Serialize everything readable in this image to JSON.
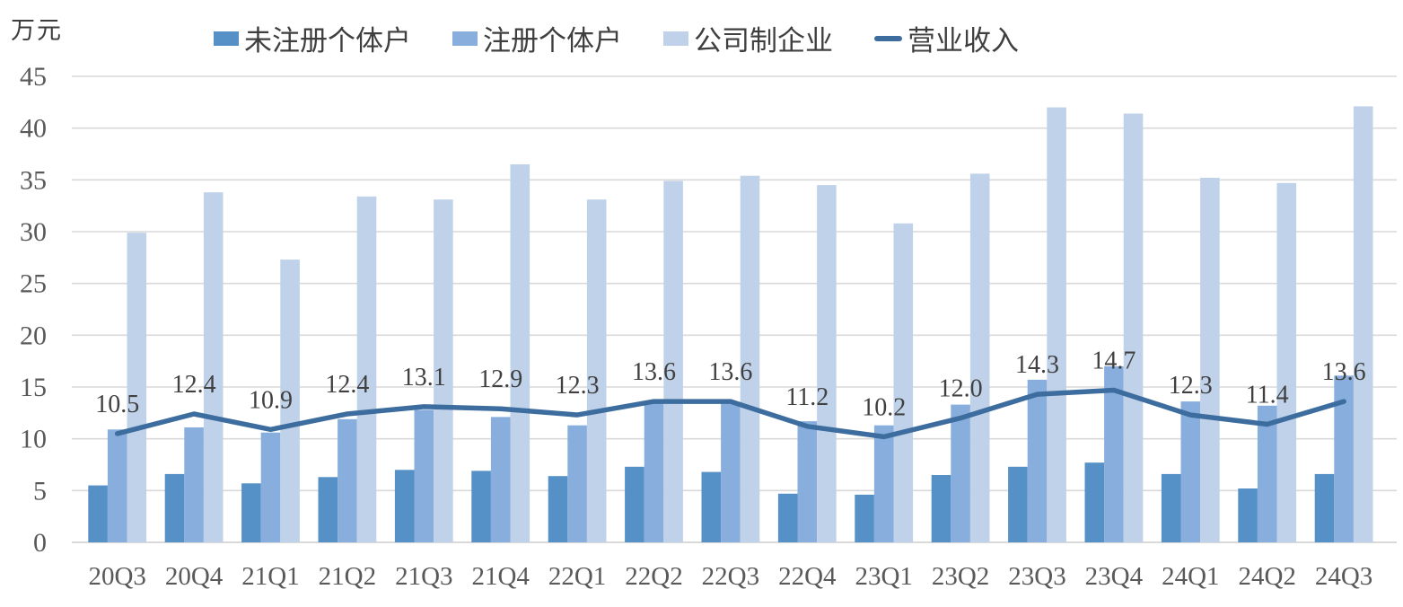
{
  "unit_label": "万元",
  "colors": {
    "bar_unregistered": "#5590C7",
    "bar_registered": "#87AEDD",
    "bar_corporate": "#C0D2EA",
    "revenue_line": "#3D6D9E",
    "gridline": "#D9D9D9",
    "axis_line": "#C6C6C6",
    "tick_text": "#595959",
    "data_label_text": "#404040"
  },
  "chart_data": {
    "type": "bar",
    "subtype": "grouped bars with line overlay",
    "title": "",
    "xlabel": "",
    "ylabel": "万元",
    "ylim": [
      0,
      45
    ],
    "ytick_labels": [
      "0",
      "5",
      "10",
      "15",
      "20",
      "25",
      "30",
      "35",
      "40",
      "45"
    ],
    "grid": true,
    "legend_position": "top",
    "categories": [
      "20Q3",
      "20Q4",
      "21Q1",
      "21Q2",
      "21Q3",
      "21Q4",
      "22Q1",
      "22Q2",
      "22Q3",
      "22Q4",
      "23Q1",
      "23Q2",
      "23Q3",
      "23Q4",
      "24Q1",
      "24Q2",
      "24Q3"
    ],
    "series": [
      {
        "name": "未注册个体户",
        "kind": "bar",
        "values": [
          5.5,
          6.6,
          5.7,
          6.3,
          7.0,
          6.9,
          6.4,
          7.3,
          6.8,
          4.7,
          4.6,
          6.5,
          7.3,
          7.7,
          6.6,
          5.2,
          6.6
        ]
      },
      {
        "name": "注册个体户",
        "kind": "bar",
        "values": [
          10.9,
          11.1,
          10.6,
          11.9,
          12.8,
          12.1,
          11.3,
          13.4,
          13.5,
          11.7,
          11.3,
          13.3,
          15.7,
          17.0,
          13.6,
          13.2,
          16.1
        ]
      },
      {
        "name": "公司制企业",
        "kind": "bar",
        "values": [
          29.9,
          33.8,
          27.3,
          33.4,
          33.1,
          36.5,
          33.1,
          34.9,
          35.4,
          34.5,
          30.8,
          35.6,
          42.0,
          41.4,
          35.2,
          34.7,
          42.1
        ]
      },
      {
        "name": "营业收入",
        "kind": "line",
        "values": [
          10.5,
          12.4,
          10.9,
          12.4,
          13.1,
          12.9,
          12.3,
          13.6,
          13.6,
          11.2,
          10.2,
          12.0,
          14.3,
          14.7,
          12.3,
          11.4,
          13.6
        ],
        "labels": [
          "10.5",
          "12.4",
          "10.9",
          "12.4",
          "13.1",
          "12.9",
          "12.3",
          "13.6",
          "13.6",
          "11.2",
          "10.2",
          "12.0",
          "14.3",
          "14.7",
          "12.3",
          "11.4",
          "13.6"
        ]
      }
    ]
  }
}
